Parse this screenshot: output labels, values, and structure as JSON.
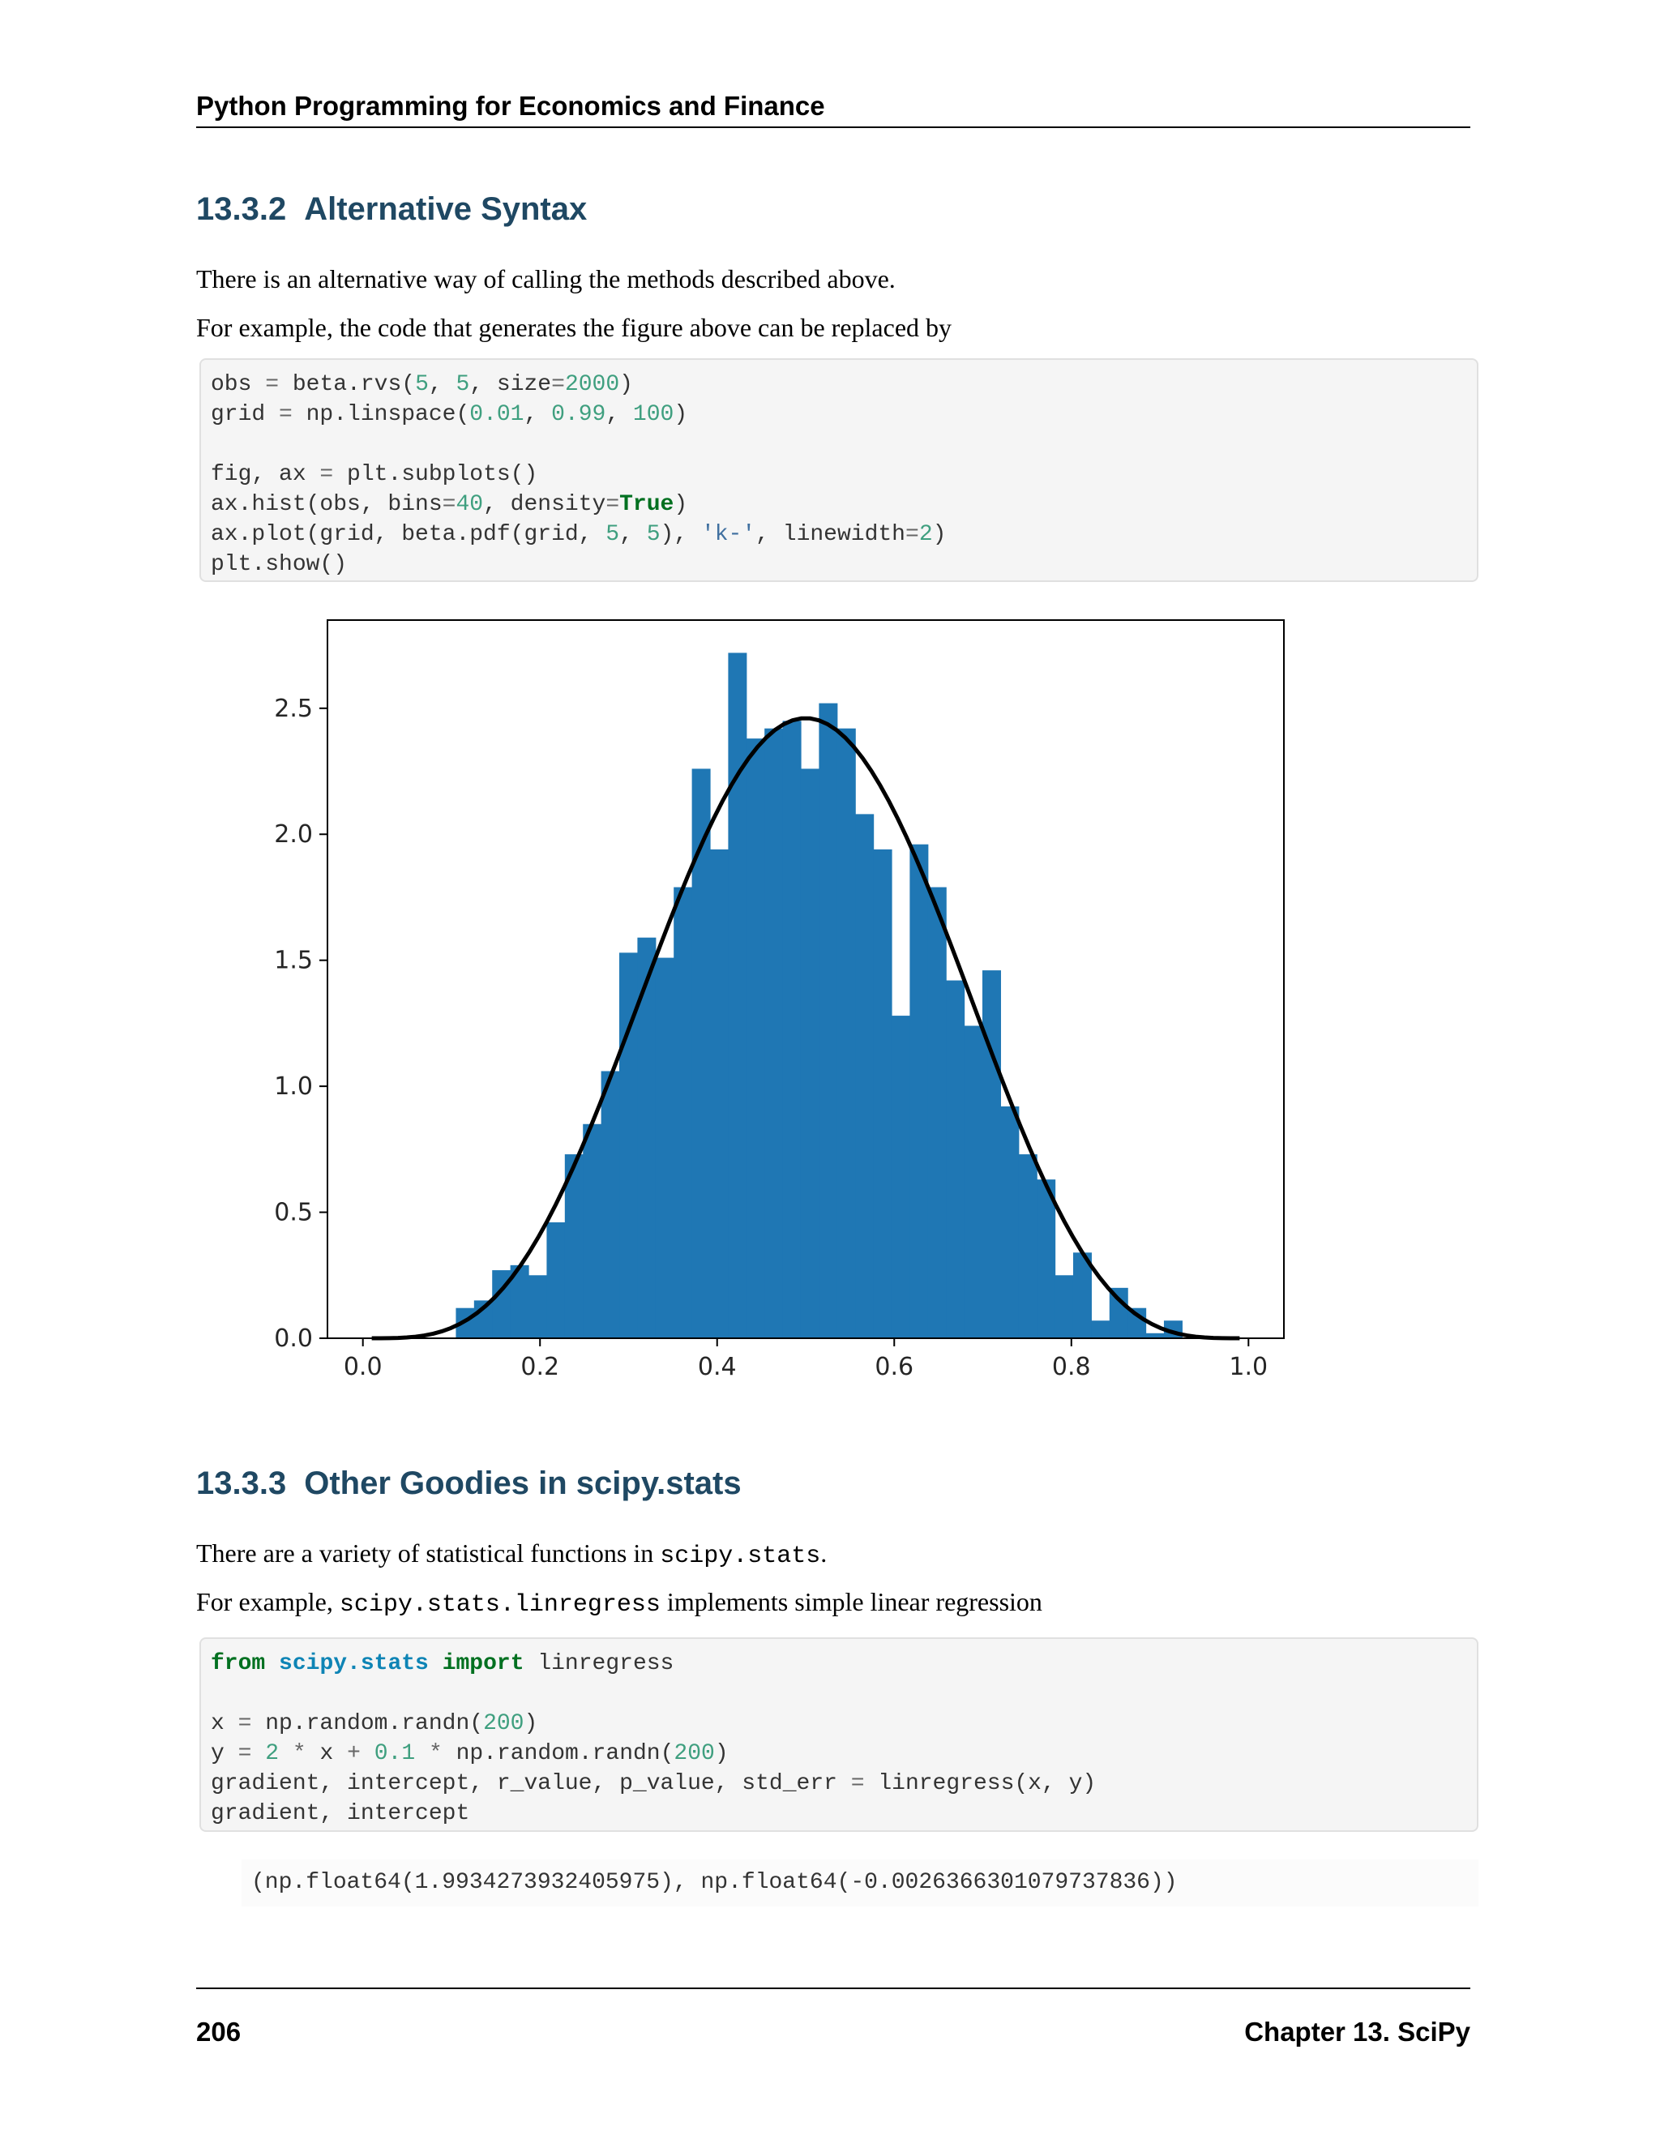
{
  "header": {
    "title": "Python Programming for Economics and Finance"
  },
  "section1": {
    "number": "13.3.2",
    "title": "Alternative Syntax",
    "para1": "There is an alternative way of calling the methods described above.",
    "para2": "For example, the code that generates the figure above can be replaced by"
  },
  "code1": {
    "lines": [
      "obs = beta.rvs(5, 5, size=2000)",
      "grid = np.linspace(0.01, 0.99, 100)",
      "",
      "fig, ax = plt.subplots()",
      "ax.hist(obs, bins=40, density=True)",
      "ax.plot(grid, beta.pdf(grid, 5, 5), 'k-', linewidth=2)",
      "plt.show()"
    ]
  },
  "chart_data": {
    "type": "bar",
    "bins": 40,
    "bin_edges_range": [
      0.105,
      0.925
    ],
    "values": [
      0.12,
      0.15,
      0.27,
      0.29,
      0.25,
      0.46,
      0.73,
      0.85,
      1.06,
      1.53,
      1.59,
      1.51,
      1.79,
      2.26,
      1.94,
      2.72,
      2.38,
      2.42,
      2.45,
      2.26,
      2.52,
      2.42,
      2.08,
      1.94,
      1.28,
      1.96,
      1.79,
      1.42,
      1.24,
      1.46,
      0.92,
      0.73,
      0.63,
      0.25,
      0.34,
      0.07,
      0.2,
      0.12,
      0.02,
      0.07
    ],
    "bar_color": "#1f77b4",
    "line": {
      "label": "beta.pdf(grid, 5, 5)",
      "x_range": [
        0.01,
        0.99
      ],
      "color": "#000000"
    },
    "xlim": [
      -0.04,
      1.04
    ],
    "ylim": [
      0,
      2.85
    ],
    "xticks": [
      "0.0",
      "0.2",
      "0.4",
      "0.6",
      "0.8",
      "1.0"
    ],
    "yticks": [
      "0.0",
      "0.5",
      "1.0",
      "1.5",
      "2.0",
      "2.5"
    ],
    "grid": false
  },
  "section2": {
    "number": "13.3.3",
    "title": "Other Goodies in scipy.stats",
    "para1_pre": "There are a variety of statistical functions in ",
    "para1_code": "scipy.stats",
    "para1_post": ".",
    "para2_pre": "For example, ",
    "para2_code": "scipy.stats.linregress",
    "para2_post": " implements simple linear regression"
  },
  "code2": {
    "lines": [
      "from scipy.stats import linregress",
      "",
      "x = np.random.randn(200)",
      "y = 2 * x + 0.1 * np.random.randn(200)",
      "gradient, intercept, r_value, p_value, std_err = linregress(x, y)",
      "gradient, intercept"
    ]
  },
  "output2": {
    "text": "(np.float64(1.9934273932405975), np.float64(-0.0026366301079737836))"
  },
  "footer": {
    "page": "206",
    "chapter": "Chapter 13.  SciPy"
  }
}
